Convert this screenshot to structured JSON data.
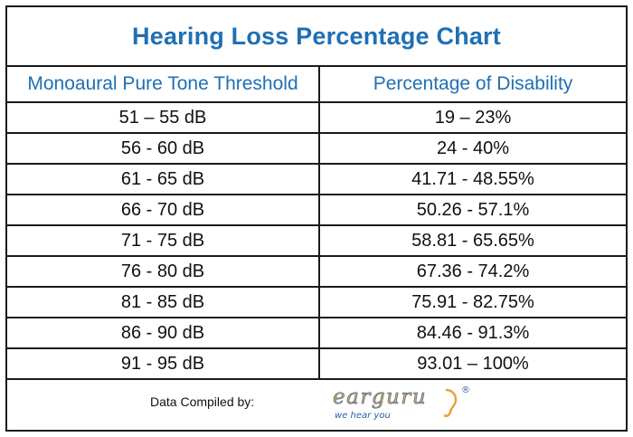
{
  "title": "Hearing Loss Percentage Chart",
  "columns": [
    "Monoaural Pure Tone Threshold",
    "Percentage of Disability"
  ],
  "rows": [
    [
      "51 – 55 dB",
      "19 – 23%"
    ],
    [
      "56 - 60 dB",
      "24 - 40%"
    ],
    [
      "61 - 65 dB",
      "41.71 - 48.55%"
    ],
    [
      "66 - 70 dB",
      "50.26 - 57.1%"
    ],
    [
      "71 - 75 dB",
      "58.81 - 65.65%"
    ],
    [
      "76 - 80 dB",
      "67.36 - 74.2%"
    ],
    [
      "81 - 85 dB",
      "75.91 - 82.75%"
    ],
    [
      "86 - 90 dB",
      "84.46 - 91.3%"
    ],
    [
      "91 - 95 dB",
      "93.01 – 100%"
    ]
  ],
  "footer": {
    "credit": "Data Compiled by:",
    "logo_name": "earguru",
    "logo_tagline": "we hear you",
    "logo_mark": "®"
  },
  "colors": {
    "accent": "#1f6fb3",
    "logo_orange": "#e8a13a",
    "logo_blue": "#2a5fa8"
  }
}
